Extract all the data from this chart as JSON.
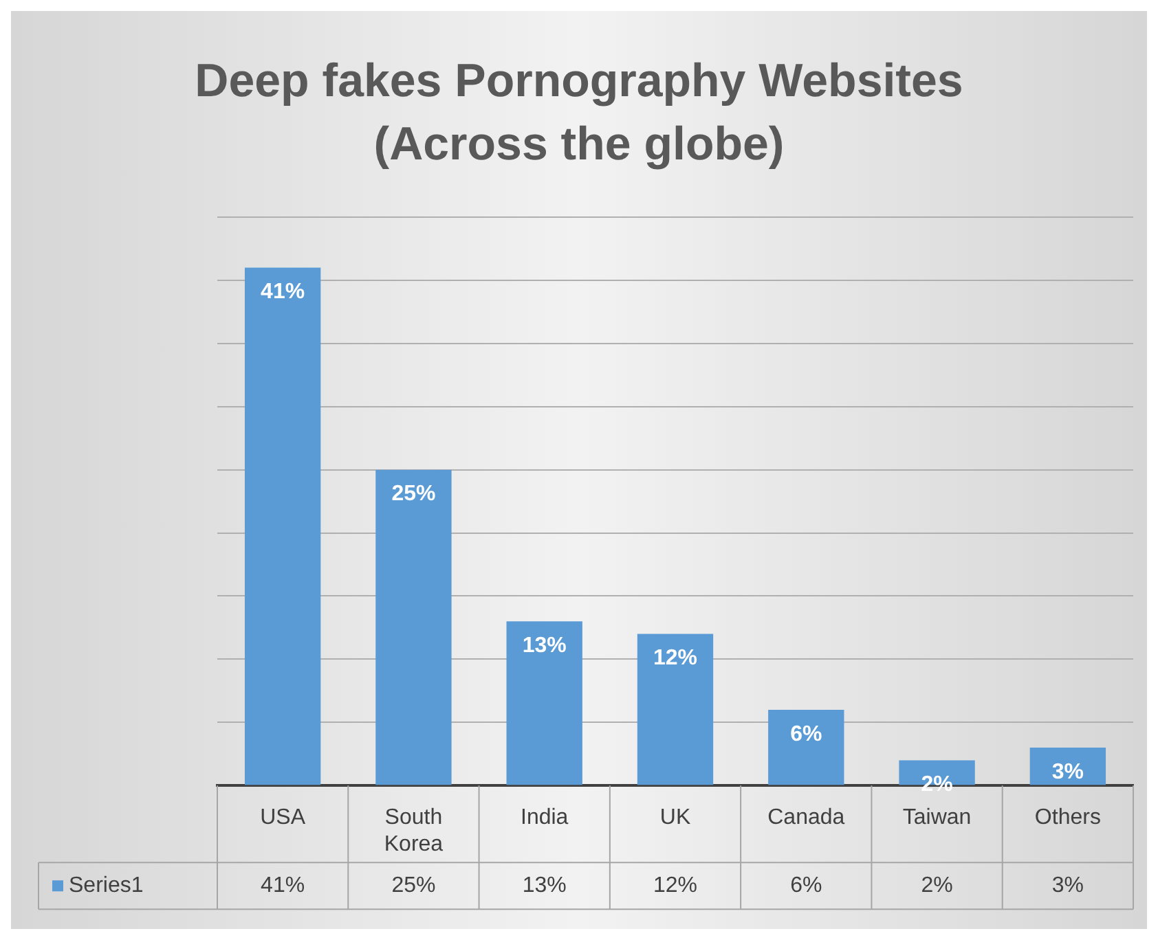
{
  "chart_data": {
    "type": "bar",
    "title": "Deep fakes Pornography Websites (Across the globe)",
    "categories": [
      "USA",
      "South Korea",
      "India",
      "UK",
      "Canada",
      "Taiwan",
      "Others"
    ],
    "series": [
      {
        "name": "Series1",
        "color": "#5b9bd5",
        "values": [
          41,
          25,
          13,
          12,
          6,
          2,
          3
        ],
        "value_labels": [
          "41%",
          "25%",
          "13%",
          "12%",
          "6%",
          "2%",
          "3%"
        ]
      }
    ],
    "ylim": [
      0,
      45
    ],
    "yticks": [
      {
        "value": 0,
        "label": null
      },
      {
        "value": 5,
        "label": null
      },
      {
        "value": 10,
        "label": null
      },
      {
        "value": 15,
        "label": null
      },
      {
        "value": 20,
        "label": null
      },
      {
        "value": 25,
        "label": null
      },
      {
        "value": 30,
        "label": null
      },
      {
        "value": 35,
        "label": null
      },
      {
        "value": 40,
        "label": null
      },
      {
        "value": 45,
        "label": null
      }
    ],
    "tick_labels": "x",
    "grid": "y",
    "legend": "bottom"
  }
}
